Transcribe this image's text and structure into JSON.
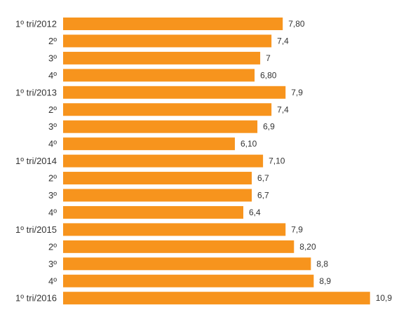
{
  "chart_data": {
    "type": "bar",
    "orientation": "horizontal",
    "categories": [
      "1º tri/2012",
      "2º",
      "3º",
      "4º",
      "1º tri/2013",
      "2º",
      "3º",
      "4º",
      "1º tri/2014",
      "2º",
      "3º",
      "4º",
      "1º tri/2015",
      "2º",
      "3º",
      "4º",
      "1º tri/2016"
    ],
    "values": [
      7.8,
      7.4,
      7,
      6.8,
      7.9,
      7.4,
      6.9,
      6.1,
      7.1,
      6.7,
      6.7,
      6.4,
      7.9,
      8.2,
      8.8,
      8.9,
      10.9
    ],
    "value_labels": [
      "7,80",
      "7,4",
      "7",
      "6,80",
      "7,9",
      "7,4",
      "6,9",
      "6,10",
      "7,10",
      "6,7",
      "6,7",
      "6,4",
      "7,9",
      "8,20",
      "8,8",
      "8,9",
      "10,9"
    ],
    "xlim": [
      0,
      12.7
    ],
    "grid": false,
    "colors": {
      "bar": "#F7941D",
      "text": "#333333"
    }
  }
}
